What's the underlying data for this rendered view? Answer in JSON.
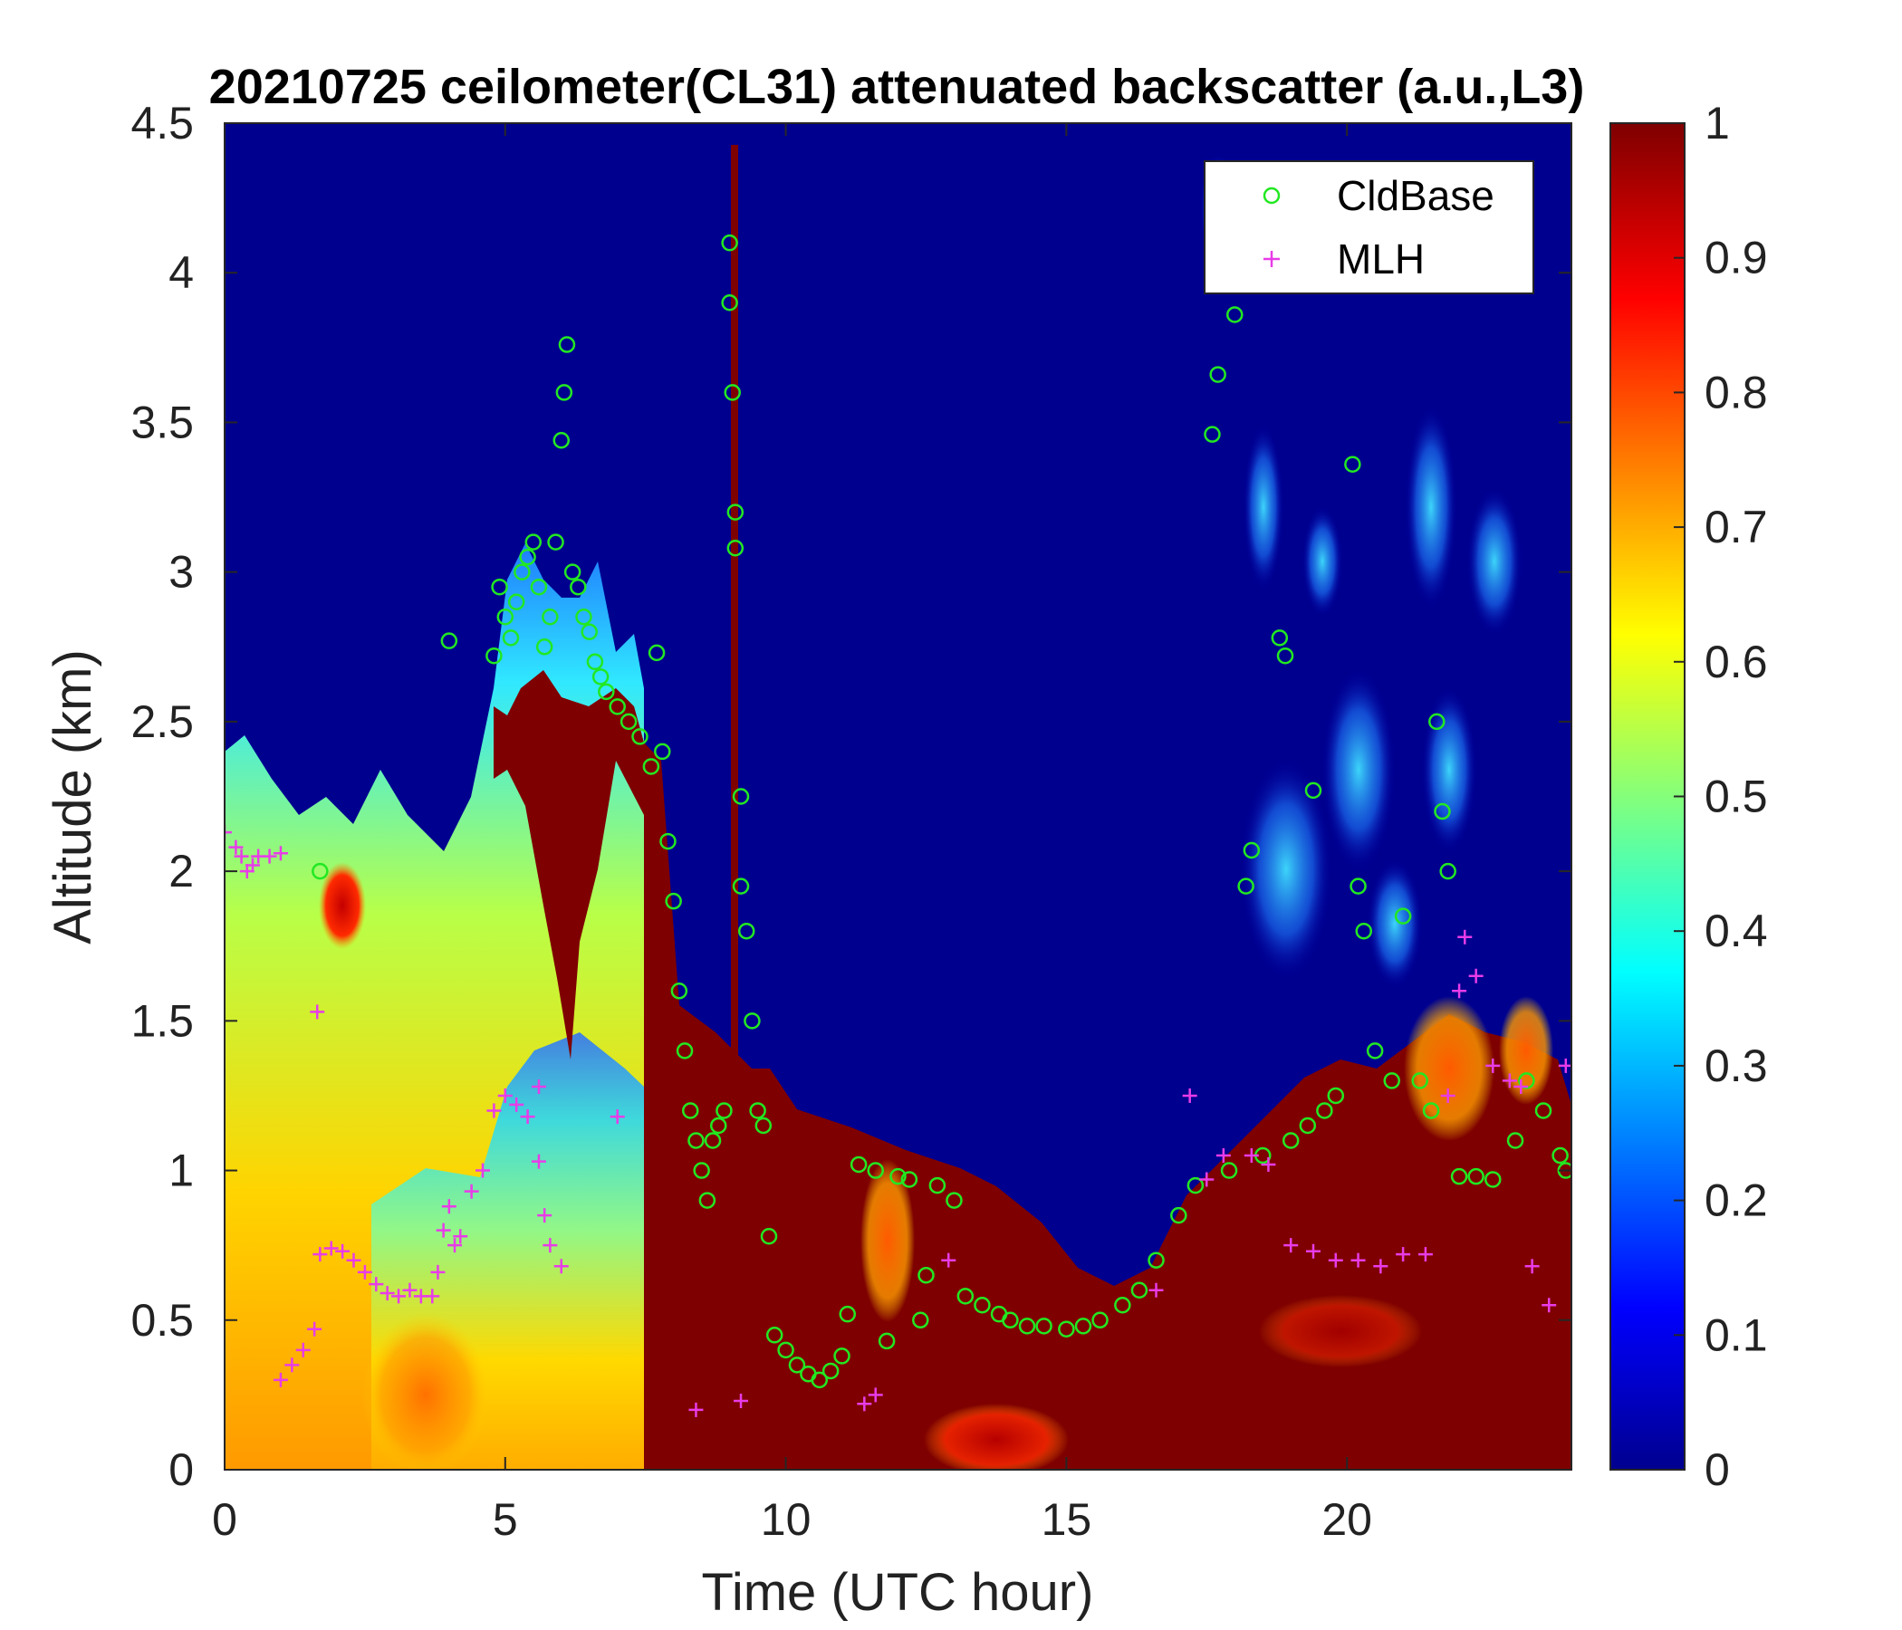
{
  "chart_data": {
    "type": "heatmap",
    "title": "20210725 ceilometer(CL31) attenuated backscatter (a.u.,L3)",
    "xlabel": "Time (UTC hour)",
    "ylabel": "Altitude (km)",
    "xlim": [
      0,
      24
    ],
    "ylim": [
      0,
      4.5
    ],
    "xticks": [
      "0",
      "5",
      "10",
      "15",
      "20"
    ],
    "yticks": [
      "0",
      "0.5",
      "1",
      "1.5",
      "2",
      "2.5",
      "3",
      "3.5",
      "4",
      "4.5"
    ],
    "colorbar": {
      "colormap": "jet",
      "range": [
        0,
        1
      ],
      "ticks": [
        "0",
        "0.1",
        "0.2",
        "0.3",
        "0.4",
        "0.5",
        "0.6",
        "0.7",
        "0.8",
        "0.9",
        "1"
      ]
    },
    "legend": {
      "position": "top-right",
      "entries": [
        {
          "label": "CldBase",
          "marker": "o",
          "color": "#22e822"
        },
        {
          "label": "MLH",
          "marker": "+",
          "color": "#e83ce8"
        }
      ]
    },
    "series": [
      {
        "name": "CldBase",
        "marker": "circle",
        "color": "#22e822",
        "points": [
          [
            1.7,
            2.0
          ],
          [
            4.0,
            2.77
          ],
          [
            4.8,
            2.72
          ],
          [
            4.9,
            2.95
          ],
          [
            5.0,
            2.85
          ],
          [
            5.1,
            2.78
          ],
          [
            5.2,
            2.9
          ],
          [
            5.3,
            3.0
          ],
          [
            5.4,
            3.05
          ],
          [
            5.5,
            3.1
          ],
          [
            5.6,
            2.95
          ],
          [
            5.7,
            2.75
          ],
          [
            5.8,
            2.85
          ],
          [
            5.9,
            3.1
          ],
          [
            6.0,
            3.44
          ],
          [
            6.05,
            3.6
          ],
          [
            6.1,
            3.76
          ],
          [
            6.2,
            3.0
          ],
          [
            6.3,
            2.95
          ],
          [
            6.4,
            2.85
          ],
          [
            6.5,
            2.8
          ],
          [
            6.6,
            2.7
          ],
          [
            6.7,
            2.65
          ],
          [
            6.8,
            2.6
          ],
          [
            7.0,
            2.55
          ],
          [
            7.2,
            2.5
          ],
          [
            7.4,
            2.45
          ],
          [
            7.6,
            2.35
          ],
          [
            7.7,
            2.73
          ],
          [
            7.8,
            2.4
          ],
          [
            7.9,
            2.1
          ],
          [
            8.0,
            1.9
          ],
          [
            8.1,
            1.6
          ],
          [
            8.2,
            1.4
          ],
          [
            8.3,
            1.2
          ],
          [
            8.4,
            1.1
          ],
          [
            8.5,
            1.0
          ],
          [
            8.6,
            0.9
          ],
          [
            8.7,
            1.1
          ],
          [
            8.8,
            1.15
          ],
          [
            8.9,
            1.2
          ],
          [
            9.0,
            4.1
          ],
          [
            9.0,
            3.9
          ],
          [
            9.05,
            3.6
          ],
          [
            9.1,
            3.2
          ],
          [
            9.1,
            3.08
          ],
          [
            9.2,
            2.25
          ],
          [
            9.2,
            1.95
          ],
          [
            9.3,
            1.8
          ],
          [
            9.4,
            1.5
          ],
          [
            9.5,
            1.2
          ],
          [
            9.6,
            1.15
          ],
          [
            9.7,
            0.78
          ],
          [
            9.8,
            0.45
          ],
          [
            10.0,
            0.4
          ],
          [
            10.2,
            0.35
          ],
          [
            10.4,
            0.32
          ],
          [
            10.6,
            0.3
          ],
          [
            10.8,
            0.33
          ],
          [
            11.0,
            0.38
          ],
          [
            11.1,
            0.52
          ],
          [
            11.3,
            1.02
          ],
          [
            11.6,
            1.0
          ],
          [
            11.8,
            0.43
          ],
          [
            12.0,
            0.98
          ],
          [
            12.2,
            0.97
          ],
          [
            12.4,
            0.5
          ],
          [
            12.5,
            0.65
          ],
          [
            12.7,
            0.95
          ],
          [
            13.0,
            0.9
          ],
          [
            13.2,
            0.58
          ],
          [
            13.5,
            0.55
          ],
          [
            13.8,
            0.52
          ],
          [
            14.0,
            0.5
          ],
          [
            14.3,
            0.48
          ],
          [
            14.6,
            0.48
          ],
          [
            15.0,
            0.47
          ],
          [
            15.3,
            0.48
          ],
          [
            15.6,
            0.5
          ],
          [
            16.0,
            0.55
          ],
          [
            16.3,
            0.6
          ],
          [
            16.6,
            0.7
          ],
          [
            17.0,
            0.85
          ],
          [
            17.3,
            0.95
          ],
          [
            17.6,
            3.46
          ],
          [
            17.7,
            3.66
          ],
          [
            17.9,
            1.0
          ],
          [
            18.0,
            3.86
          ],
          [
            18.2,
            1.95
          ],
          [
            18.3,
            2.07
          ],
          [
            18.5,
            1.05
          ],
          [
            18.8,
            2.78
          ],
          [
            18.9,
            2.72
          ],
          [
            19.0,
            1.1
          ],
          [
            19.3,
            1.15
          ],
          [
            19.4,
            2.27
          ],
          [
            19.6,
            1.2
          ],
          [
            19.8,
            1.25
          ],
          [
            20.1,
            3.36
          ],
          [
            20.2,
            1.95
          ],
          [
            20.3,
            1.8
          ],
          [
            20.5,
            1.4
          ],
          [
            20.8,
            1.3
          ],
          [
            21.0,
            1.85
          ],
          [
            21.3,
            1.3
          ],
          [
            21.5,
            1.2
          ],
          [
            21.6,
            2.5
          ],
          [
            21.7,
            2.2
          ],
          [
            21.8,
            2.0
          ],
          [
            22.0,
            0.98
          ],
          [
            22.3,
            0.98
          ],
          [
            22.6,
            0.97
          ],
          [
            23.0,
            1.1
          ],
          [
            23.2,
            1.3
          ],
          [
            23.5,
            1.2
          ],
          [
            23.8,
            1.05
          ],
          [
            23.9,
            1.0
          ]
        ]
      },
      {
        "name": "MLH",
        "marker": "plus",
        "color": "#e83ce8",
        "points": [
          [
            0.0,
            2.13
          ],
          [
            0.2,
            2.08
          ],
          [
            0.3,
            2.05
          ],
          [
            0.4,
            2.0
          ],
          [
            0.5,
            2.02
          ],
          [
            0.6,
            2.05
          ],
          [
            0.8,
            2.05
          ],
          [
            1.0,
            2.06
          ],
          [
            1.0,
            0.3
          ],
          [
            1.2,
            0.35
          ],
          [
            1.4,
            0.4
          ],
          [
            1.6,
            0.47
          ],
          [
            1.65,
            1.53
          ],
          [
            1.7,
            0.72
          ],
          [
            1.9,
            0.74
          ],
          [
            2.1,
            0.73
          ],
          [
            2.3,
            0.7
          ],
          [
            2.5,
            0.66
          ],
          [
            2.7,
            0.62
          ],
          [
            2.9,
            0.59
          ],
          [
            3.1,
            0.58
          ],
          [
            3.3,
            0.6
          ],
          [
            3.5,
            0.58
          ],
          [
            3.7,
            0.58
          ],
          [
            3.8,
            0.66
          ],
          [
            3.9,
            0.8
          ],
          [
            4.0,
            0.88
          ],
          [
            4.1,
            0.75
          ],
          [
            4.2,
            0.78
          ],
          [
            4.4,
            0.93
          ],
          [
            4.6,
            1.0
          ],
          [
            4.8,
            1.2
          ],
          [
            5.0,
            1.25
          ],
          [
            5.2,
            1.22
          ],
          [
            5.4,
            1.18
          ],
          [
            5.6,
            1.28
          ],
          [
            5.6,
            1.03
          ],
          [
            5.7,
            0.85
          ],
          [
            5.8,
            0.75
          ],
          [
            6.0,
            0.68
          ],
          [
            7.0,
            1.18
          ],
          [
            8.4,
            0.2
          ],
          [
            9.2,
            0.23
          ],
          [
            11.4,
            0.22
          ],
          [
            11.6,
            0.25
          ],
          [
            12.9,
            0.7
          ],
          [
            16.6,
            0.6
          ],
          [
            17.2,
            1.25
          ],
          [
            17.5,
            0.97
          ],
          [
            17.8,
            1.05
          ],
          [
            18.3,
            1.05
          ],
          [
            18.6,
            1.02
          ],
          [
            19.0,
            0.75
          ],
          [
            19.4,
            0.73
          ],
          [
            19.8,
            0.7
          ],
          [
            20.2,
            0.7
          ],
          [
            20.6,
            0.68
          ],
          [
            21.0,
            0.72
          ],
          [
            21.4,
            0.72
          ],
          [
            21.8,
            1.25
          ],
          [
            22.0,
            1.6
          ],
          [
            22.1,
            1.78
          ],
          [
            22.3,
            1.65
          ],
          [
            22.6,
            1.35
          ],
          [
            22.9,
            1.3
          ],
          [
            23.1,
            1.28
          ],
          [
            23.3,
            0.68
          ],
          [
            23.6,
            0.55
          ],
          [
            23.9,
            1.35
          ]
        ]
      }
    ]
  }
}
